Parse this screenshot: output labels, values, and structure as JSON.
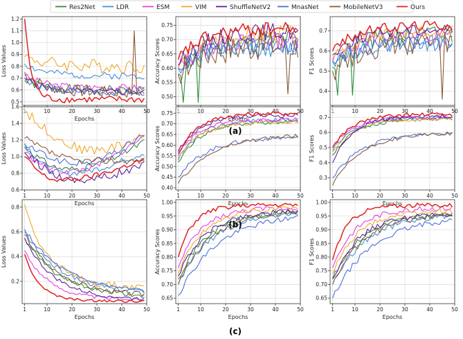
{
  "figure": {
    "legend": [
      {
        "name": "Res2Net",
        "color": "#2e8b3e"
      },
      {
        "name": "LDR",
        "color": "#3f8fd8"
      },
      {
        "name": "ESM",
        "color": "#e83ce8"
      },
      {
        "name": "VIM",
        "color": "#f2a72c"
      },
      {
        "name": "ShuffleNetV2",
        "color": "#5a1f9a"
      },
      {
        "name": "MnasNet",
        "color": "#4a6fd8"
      },
      {
        "name": "MobileNetV3",
        "color": "#8b5a3a"
      },
      {
        "name": "Ours",
        "color": "#e02020"
      }
    ],
    "row_labels": [
      "(a)",
      "(b)",
      "(c)"
    ]
  },
  "chart_data": [
    {
      "type": "line",
      "row": "a",
      "title": "",
      "xlabel": "Epochs",
      "ylabel": "Loss Values",
      "xlim": [
        0,
        50
      ],
      "ylim": [
        0.47,
        1.22
      ],
      "xticks": [
        1,
        10,
        20,
        30,
        40,
        50
      ],
      "yticks": [
        0.5,
        0.6,
        0.7,
        0.8,
        0.9,
        1.0,
        1.1,
        1.2
      ],
      "ytick_labels": [
        "0.5",
        "0.6",
        "0.7",
        "0.8",
        "0.9",
        "1.0",
        "1.1",
        "1.2"
      ],
      "series": [
        {
          "name": "Res2Net",
          "start": 0.68,
          "end": 0.6,
          "k": 8,
          "amp": 0.04,
          "seed": 1
        },
        {
          "name": "LDR",
          "start": 0.82,
          "end": 0.72,
          "k": 8,
          "amp": 0.03,
          "seed": 2
        },
        {
          "name": "ESM",
          "start": 0.72,
          "end": 0.62,
          "k": 8,
          "amp": 0.03,
          "seed": 3
        },
        {
          "name": "VIM",
          "start": 0.88,
          "end": 0.8,
          "k": 10,
          "amp": 0.06,
          "seed": 4
        },
        {
          "name": "ShuffleNetV2",
          "start": 0.7,
          "end": 0.58,
          "k": 8,
          "amp": 0.03,
          "seed": 5
        },
        {
          "name": "MnasNet",
          "start": 0.7,
          "end": 0.58,
          "k": 8,
          "amp": 0.03,
          "seed": 6
        },
        {
          "name": "MobileNetV3",
          "start": 0.75,
          "end": 0.58,
          "k": 8,
          "amp": 0.05,
          "seed": 7,
          "spikes": [
            [
              45,
              1.1
            ]
          ]
        },
        {
          "name": "Ours",
          "start": 1.2,
          "end": 0.52,
          "k": 2.5,
          "amp": 0.03,
          "seed": 8
        }
      ]
    },
    {
      "type": "line",
      "row": "a",
      "title": "",
      "xlabel": "Epochs",
      "ylabel": "Accuracy Scores",
      "xlim": [
        0,
        50
      ],
      "ylim": [
        0.47,
        0.78
      ],
      "xticks": [
        1,
        10,
        20,
        30,
        40,
        50
      ],
      "yticks": [
        0.5,
        0.55,
        0.6,
        0.65,
        0.7,
        0.75
      ],
      "ytick_labels": [
        "0.50",
        "0.55",
        "0.60",
        "0.65",
        "0.70",
        "0.75"
      ],
      "series": [
        {
          "name": "Res2Net",
          "start": 0.58,
          "end": 0.7,
          "k": 10,
          "amp": 0.04,
          "seed": 11,
          "spikes": [
            [
              3,
              0.48
            ],
            [
              9,
              0.48
            ]
          ]
        },
        {
          "name": "LDR",
          "start": 0.6,
          "end": 0.67,
          "k": 10,
          "amp": 0.03,
          "seed": 12
        },
        {
          "name": "ESM",
          "start": 0.6,
          "end": 0.7,
          "k": 10,
          "amp": 0.03,
          "seed": 13
        },
        {
          "name": "VIM",
          "start": 0.6,
          "end": 0.72,
          "k": 10,
          "amp": 0.03,
          "seed": 14
        },
        {
          "name": "ShuffleNetV2",
          "start": 0.61,
          "end": 0.73,
          "k": 10,
          "amp": 0.03,
          "seed": 15
        },
        {
          "name": "MnasNet",
          "start": 0.6,
          "end": 0.68,
          "k": 10,
          "amp": 0.03,
          "seed": 16
        },
        {
          "name": "MobileNetV3",
          "start": 0.58,
          "end": 0.68,
          "k": 10,
          "amp": 0.05,
          "seed": 17,
          "spikes": [
            [
              45,
              0.51
            ]
          ]
        },
        {
          "name": "Ours",
          "start": 0.63,
          "end": 0.74,
          "k": 10,
          "amp": 0.025,
          "seed": 18
        }
      ]
    },
    {
      "type": "line",
      "row": "a",
      "title": "",
      "xlabel": "Epochs",
      "ylabel": "F1 Scores",
      "xlim": [
        0,
        50
      ],
      "ylim": [
        0.33,
        0.77
      ],
      "xticks": [
        1,
        10,
        20,
        30,
        40,
        50
      ],
      "yticks": [
        0.4,
        0.5,
        0.6,
        0.7
      ],
      "ytick_labels": [
        "0.4",
        "0.5",
        "0.6",
        "0.7"
      ],
      "series": [
        {
          "name": "Res2Net",
          "start": 0.52,
          "end": 0.68,
          "k": 10,
          "amp": 0.05,
          "seed": 21,
          "spikes": [
            [
              3,
              0.38
            ],
            [
              9,
              0.38
            ]
          ]
        },
        {
          "name": "LDR",
          "start": 0.55,
          "end": 0.64,
          "k": 10,
          "amp": 0.04,
          "seed": 22
        },
        {
          "name": "ESM",
          "start": 0.55,
          "end": 0.68,
          "k": 10,
          "amp": 0.03,
          "seed": 23
        },
        {
          "name": "VIM",
          "start": 0.56,
          "end": 0.7,
          "k": 10,
          "amp": 0.03,
          "seed": 24
        },
        {
          "name": "ShuffleNetV2",
          "start": 0.58,
          "end": 0.71,
          "k": 10,
          "amp": 0.03,
          "seed": 25
        },
        {
          "name": "MnasNet",
          "start": 0.55,
          "end": 0.64,
          "k": 10,
          "amp": 0.04,
          "seed": 26
        },
        {
          "name": "MobileNetV3",
          "start": 0.5,
          "end": 0.64,
          "k": 10,
          "amp": 0.06,
          "seed": 27,
          "spikes": [
            [
              45,
              0.36
            ]
          ]
        },
        {
          "name": "Ours",
          "start": 0.6,
          "end": 0.73,
          "k": 10,
          "amp": 0.025,
          "seed": 28
        }
      ]
    },
    {
      "type": "line",
      "row": "b",
      "title": "",
      "xlabel": "Epochs",
      "ylabel": "Loss Values",
      "xlim": [
        0,
        50
      ],
      "ylim": [
        0.6,
        1.6
      ],
      "xticks": [
        1,
        10,
        20,
        30,
        40,
        50
      ],
      "yticks": [
        0.6,
        0.8,
        1.0,
        1.2,
        1.4,
        1.6
      ],
      "ytick_labels": [
        "0.6",
        "0.8",
        "1.0",
        "1.2",
        "1.4",
        "1.6"
      ],
      "series": [
        {
          "name": "Res2Net",
          "start": 1.12,
          "end": 1.18,
          "min": 0.85,
          "vdip": 18,
          "amp": 0.04,
          "seed": 31
        },
        {
          "name": "LDR",
          "start": 1.16,
          "end": 1.05,
          "min": 0.8,
          "vdip": 16,
          "amp": 0.04,
          "seed": 32
        },
        {
          "name": "ESM",
          "start": 1.05,
          "end": 1.25,
          "min": 0.82,
          "vdip": 18,
          "amp": 0.04,
          "seed": 33
        },
        {
          "name": "VIM",
          "start": 1.55,
          "end": 1.25,
          "min": 1.08,
          "vdip": 28,
          "amp": 0.06,
          "seed": 34
        },
        {
          "name": "ShuffleNetV2",
          "start": 1.05,
          "end": 0.9,
          "min": 0.72,
          "vdip": 22,
          "amp": 0.05,
          "seed": 35
        },
        {
          "name": "MnasNet",
          "start": 1.15,
          "end": 1.28,
          "min": 0.92,
          "vdip": 22,
          "amp": 0.04,
          "seed": 36
        },
        {
          "name": "MobileNetV3",
          "start": 1.22,
          "end": 0.95,
          "min": 0.95,
          "vdip": 25,
          "amp": 0.04,
          "seed": 37
        },
        {
          "name": "Ours",
          "start": 1.0,
          "end": 0.97,
          "min": 0.72,
          "vdip": 14,
          "amp": 0.03,
          "seed": 38
        }
      ]
    },
    {
      "type": "line",
      "row": "b",
      "title": "",
      "xlabel": "Epochs",
      "ylabel": "Accuracy Scores",
      "xlim": [
        0,
        50
      ],
      "ylim": [
        0.39,
        0.78
      ],
      "xticks": [
        1,
        10,
        20,
        30,
        40,
        50
      ],
      "yticks": [
        0.4,
        0.45,
        0.5,
        0.55,
        0.6,
        0.65,
        0.7,
        0.75
      ],
      "ytick_labels": [
        "0.40",
        "0.45",
        "0.50",
        "0.55",
        "0.60",
        "0.65",
        "0.70",
        "0.75"
      ],
      "series": [
        {
          "name": "Res2Net",
          "start": 0.52,
          "end": 0.71,
          "k": 9,
          "amp": 0.01,
          "seed": 41
        },
        {
          "name": "LDR",
          "start": 0.53,
          "end": 0.72,
          "k": 9,
          "amp": 0.01,
          "seed": 42
        },
        {
          "name": "ESM",
          "start": 0.55,
          "end": 0.72,
          "k": 8,
          "amp": 0.01,
          "seed": 43
        },
        {
          "name": "VIM",
          "start": 0.54,
          "end": 0.71,
          "k": 9,
          "amp": 0.01,
          "seed": 44
        },
        {
          "name": "ShuffleNetV2",
          "start": 0.56,
          "end": 0.74,
          "k": 8,
          "amp": 0.01,
          "seed": 45
        },
        {
          "name": "MnasNet",
          "start": 0.45,
          "end": 0.64,
          "k": 12,
          "amp": 0.01,
          "seed": 46
        },
        {
          "name": "MobileNetV3",
          "start": 0.42,
          "end": 0.65,
          "k": 14,
          "amp": 0.01,
          "seed": 47
        },
        {
          "name": "Ours",
          "start": 0.57,
          "end": 0.75,
          "k": 8,
          "amp": 0.01,
          "seed": 48
        }
      ]
    },
    {
      "type": "line",
      "row": "b",
      "title": "",
      "xlabel": "Epochs",
      "ylabel": "F1 Scores",
      "xlim": [
        0,
        50
      ],
      "ylim": [
        0.22,
        0.77
      ],
      "xticks": [
        1,
        10,
        20,
        30,
        40,
        50
      ],
      "yticks": [
        0.3,
        0.4,
        0.5,
        0.6,
        0.7
      ],
      "ytick_labels": [
        "0.3",
        "0.4",
        "0.5",
        "0.6",
        "0.7"
      ],
      "series": [
        {
          "name": "Res2Net",
          "start": 0.45,
          "end": 0.69,
          "k": 9,
          "amp": 0.012,
          "seed": 51
        },
        {
          "name": "LDR",
          "start": 0.48,
          "end": 0.7,
          "k": 9,
          "amp": 0.012,
          "seed": 52
        },
        {
          "name": "ESM",
          "start": 0.5,
          "end": 0.7,
          "k": 8,
          "amp": 0.012,
          "seed": 53
        },
        {
          "name": "VIM",
          "start": 0.47,
          "end": 0.69,
          "k": 9,
          "amp": 0.012,
          "seed": 54
        },
        {
          "name": "ShuffleNetV2",
          "start": 0.4,
          "end": 0.71,
          "k": 8,
          "amp": 0.012,
          "seed": 55
        },
        {
          "name": "MnasNet",
          "start": 0.3,
          "end": 0.6,
          "k": 12,
          "amp": 0.012,
          "seed": 56
        },
        {
          "name": "MobileNetV3",
          "start": 0.25,
          "end": 0.6,
          "k": 12,
          "amp": 0.012,
          "seed": 57
        },
        {
          "name": "Ours",
          "start": 0.5,
          "end": 0.72,
          "k": 8,
          "amp": 0.012,
          "seed": 58
        }
      ]
    },
    {
      "type": "line",
      "row": "c",
      "title": "",
      "xlabel": "Epochs",
      "ylabel": "Loss Values",
      "xlim": [
        0,
        50
      ],
      "ylim": [
        0.02,
        0.86
      ],
      "xticks": [
        1,
        10,
        20,
        30,
        40,
        50
      ],
      "yticks": [
        0.2,
        0.4,
        0.6,
        0.8
      ],
      "ytick_labels": [
        "0.2",
        "0.4",
        "0.6",
        "0.8"
      ],
      "series": [
        {
          "name": "Res2Net",
          "start": 0.55,
          "end": 0.07,
          "k": 14,
          "amp": 0.02,
          "seed": 61
        },
        {
          "name": "LDR",
          "start": 0.6,
          "end": 0.1,
          "k": 15,
          "amp": 0.02,
          "seed": 62
        },
        {
          "name": "ESM",
          "start": 0.45,
          "end": 0.05,
          "k": 10,
          "amp": 0.015,
          "seed": 63
        },
        {
          "name": "VIM",
          "start": 0.82,
          "end": 0.15,
          "k": 10,
          "amp": 0.03,
          "seed": 64
        },
        {
          "name": "ShuffleNetV2",
          "start": 0.55,
          "end": 0.05,
          "k": 12,
          "amp": 0.015,
          "seed": 65
        },
        {
          "name": "MnasNet",
          "start": 0.62,
          "end": 0.1,
          "k": 16,
          "amp": 0.02,
          "seed": 66
        },
        {
          "name": "MobileNetV3",
          "start": 0.58,
          "end": 0.08,
          "k": 14,
          "amp": 0.02,
          "seed": 67
        },
        {
          "name": "Ours",
          "start": 0.42,
          "end": 0.04,
          "k": 6,
          "amp": 0.01,
          "seed": 68
        }
      ]
    },
    {
      "type": "line",
      "row": "c",
      "title": "",
      "xlabel": "Epochs",
      "ylabel": "Accuracy Scores",
      "xlim": [
        0,
        50
      ],
      "ylim": [
        0.63,
        1.01
      ],
      "xticks": [
        1,
        10,
        20,
        30,
        40,
        50
      ],
      "yticks": [
        0.65,
        0.7,
        0.75,
        0.8,
        0.85,
        0.9,
        0.95,
        1.0
      ],
      "ytick_labels": [
        "0.65",
        "0.70",
        "0.75",
        "0.80",
        "0.85",
        "0.90",
        "0.95",
        "1.00"
      ],
      "series": [
        {
          "name": "Res2Net",
          "start": 0.72,
          "end": 0.97,
          "k": 12,
          "amp": 0.01,
          "seed": 71
        },
        {
          "name": "LDR",
          "start": 0.7,
          "end": 0.97,
          "k": 14,
          "amp": 0.01,
          "seed": 72
        },
        {
          "name": "ESM",
          "start": 0.76,
          "end": 0.98,
          "k": 9,
          "amp": 0.01,
          "seed": 73
        },
        {
          "name": "VIM",
          "start": 0.74,
          "end": 0.98,
          "k": 10,
          "amp": 0.01,
          "seed": 74
        },
        {
          "name": "ShuffleNetV2",
          "start": 0.73,
          "end": 0.97,
          "k": 11,
          "amp": 0.01,
          "seed": 75
        },
        {
          "name": "MnasNet",
          "start": 0.66,
          "end": 0.96,
          "k": 16,
          "amp": 0.01,
          "seed": 76
        },
        {
          "name": "MobileNetV3",
          "start": 0.7,
          "end": 0.97,
          "k": 13,
          "amp": 0.01,
          "seed": 77
        },
        {
          "name": "Ours",
          "start": 0.8,
          "end": 0.99,
          "k": 6,
          "amp": 0.008,
          "seed": 78
        }
      ]
    },
    {
      "type": "line",
      "row": "c",
      "title": "",
      "xlabel": "Epochs",
      "ylabel": "F1 Scores",
      "xlim": [
        0,
        50
      ],
      "ylim": [
        0.63,
        1.01
      ],
      "xticks": [
        1,
        10,
        20,
        30,
        40,
        50
      ],
      "yticks": [
        0.65,
        0.7,
        0.75,
        0.8,
        0.85,
        0.9,
        0.95,
        1.0
      ],
      "ytick_labels": [
        "0.65",
        "0.70",
        "0.75",
        "0.80",
        "0.85",
        "0.90",
        "0.95",
        "1.00"
      ],
      "series": [
        {
          "name": "Res2Net",
          "start": 0.72,
          "end": 0.96,
          "k": 12,
          "amp": 0.01,
          "seed": 81
        },
        {
          "name": "LDR",
          "start": 0.7,
          "end": 0.96,
          "k": 14,
          "amp": 0.01,
          "seed": 82
        },
        {
          "name": "ESM",
          "start": 0.76,
          "end": 0.98,
          "k": 9,
          "amp": 0.01,
          "seed": 83
        },
        {
          "name": "VIM",
          "start": 0.74,
          "end": 0.97,
          "k": 10,
          "amp": 0.01,
          "seed": 84
        },
        {
          "name": "ShuffleNetV2",
          "start": 0.72,
          "end": 0.96,
          "k": 11,
          "amp": 0.01,
          "seed": 85
        },
        {
          "name": "MnasNet",
          "start": 0.65,
          "end": 0.95,
          "k": 16,
          "amp": 0.01,
          "seed": 86
        },
        {
          "name": "MobileNetV3",
          "start": 0.7,
          "end": 0.96,
          "k": 13,
          "amp": 0.01,
          "seed": 87
        },
        {
          "name": "Ours",
          "start": 0.79,
          "end": 0.99,
          "k": 6,
          "amp": 0.008,
          "seed": 88
        }
      ]
    }
  ]
}
